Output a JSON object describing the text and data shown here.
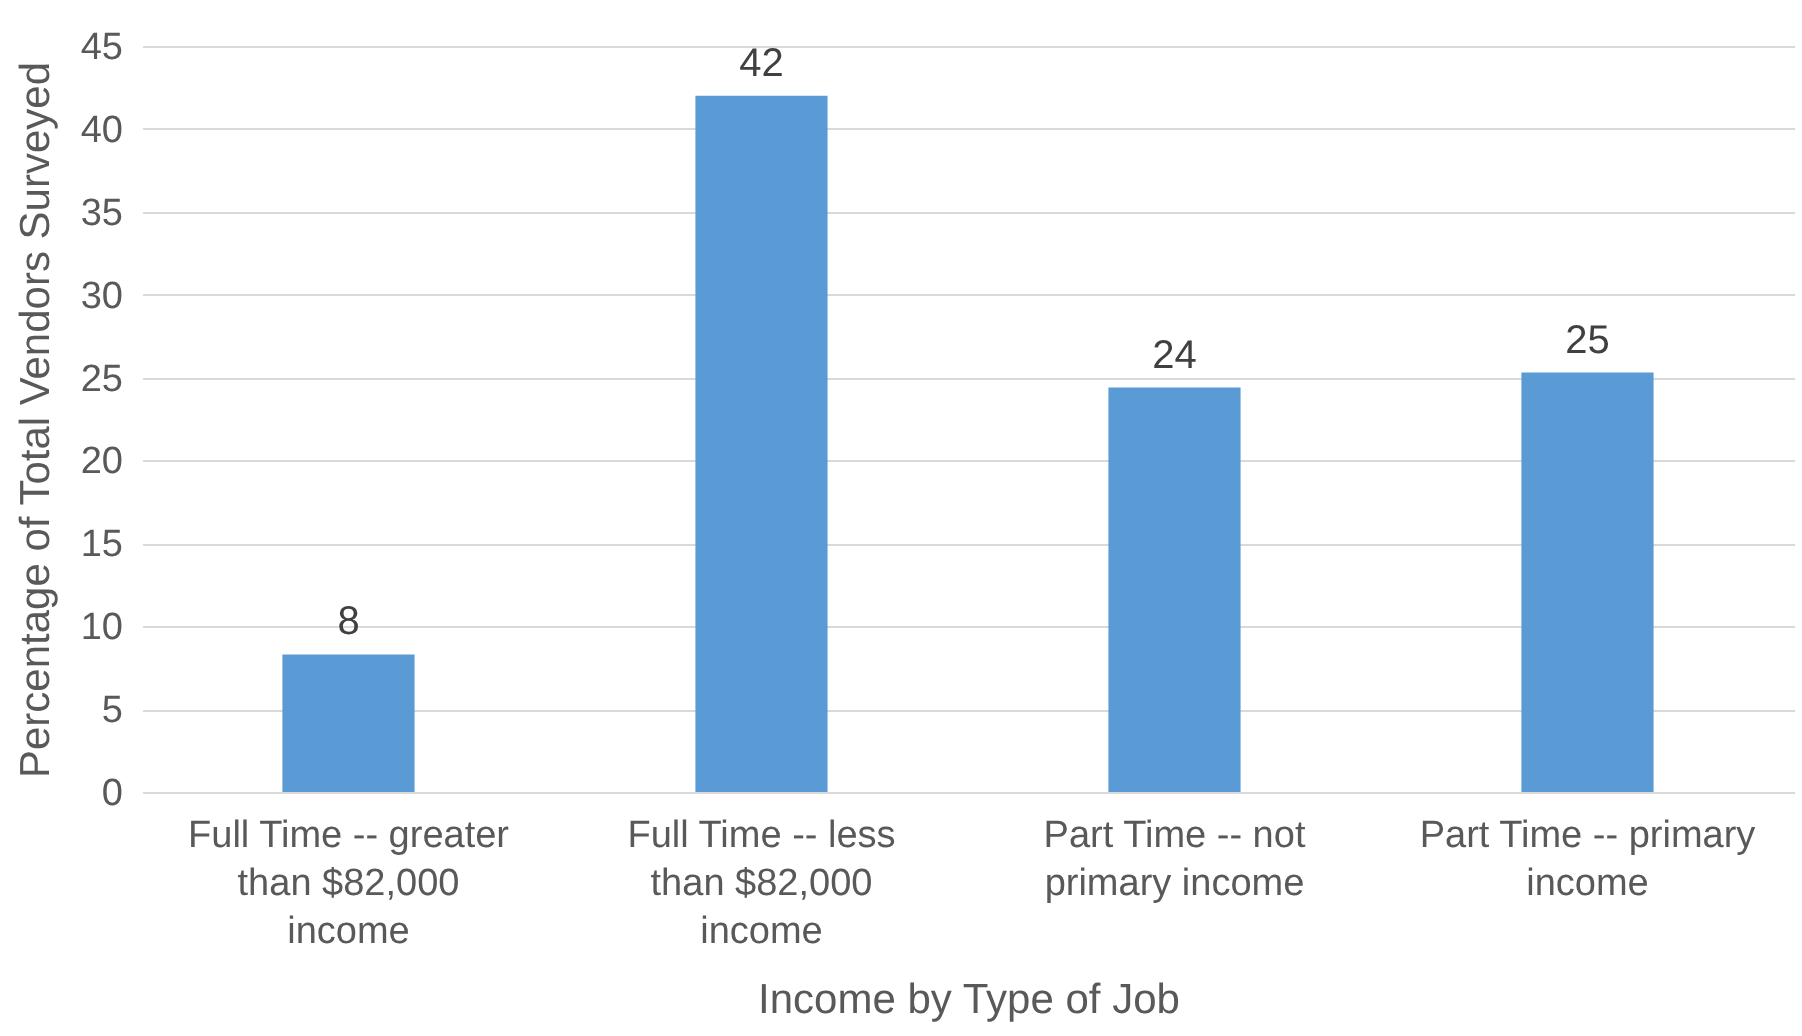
{
  "chart_data": {
    "type": "bar",
    "xlabel": "Income by Type of Job",
    "ylabel": "Percentage of Total Vendors Surveyed",
    "categories": [
      "Full Time -- greater than $82,000 income",
      "Full Time -- less than $82,000 income",
      "Part Time -- not primary income",
      "Part Time -- primary income"
    ],
    "values": [
      8.3,
      42,
      24.4,
      25.3
    ],
    "value_labels": [
      "8",
      "42",
      "24",
      "25"
    ],
    "color": "#5b9bd5",
    "ylim": [
      0,
      45
    ],
    "yticks": [
      0,
      5,
      10,
      15,
      20,
      25,
      30,
      35,
      40,
      45
    ],
    "grid": "y"
  }
}
